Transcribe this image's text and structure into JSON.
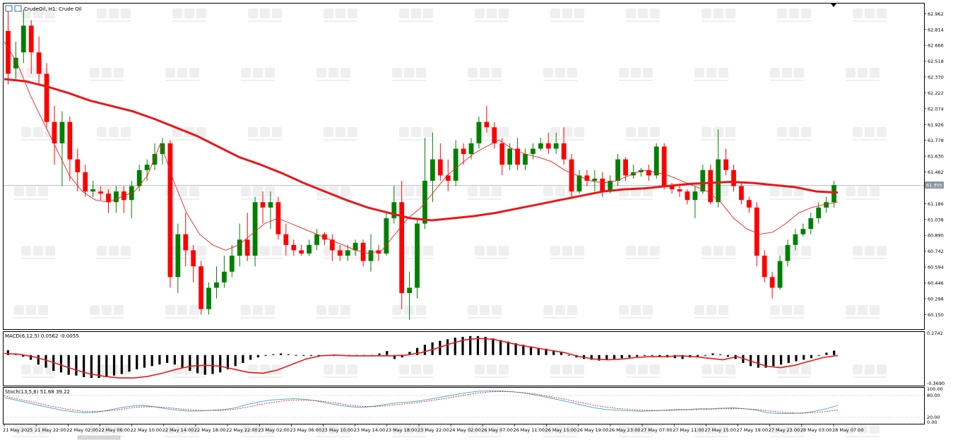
{
  "window": {
    "title": "CrudeOil, H1:  Crude Oil"
  },
  "price_panel": {
    "current_price": "61.355"
  },
  "macd_panel": {
    "label": "MACD(6,12,5) 0.0562 -0.0055",
    "scale_top": "0.2742",
    "scale_bottom": "-0.3690"
  },
  "stoch_panel": {
    "label": "Stoch(13,5,6) 51.68 39.22",
    "scale": [
      "100.00",
      "80.00",
      "20.00",
      "0.00"
    ]
  },
  "colors": {
    "bull": "#008000",
    "bear": "#ff0000",
    "ma_slow": "#e81818",
    "ma_fast": "#ee2020",
    "stoch_main": "#33aacc",
    "stoch_signal": "#dd2222"
  },
  "chart_data": {
    "type": "candlestick",
    "symbol": "CrudeOil",
    "timeframe": "H1",
    "y_ticks": [
      "62.962",
      "62.814",
      "62.666",
      "62.518",
      "62.370",
      "62.222",
      "62.074",
      "61.926",
      "61.778",
      "61.630",
      "61.482",
      "61.186",
      "61.038",
      "60.890",
      "60.742",
      "60.594",
      "60.446",
      "60.298",
      "60.150"
    ],
    "ylim": [
      60.02,
      63.05
    ],
    "x_ticks": [
      "21 May 2025",
      "21 May 22:00",
      "22 May 02:00",
      "22 May 06:00",
      "22 May 10:00",
      "22 May 14:00",
      "22 May 18:00",
      "22 May 22:00",
      "23 May 02:00",
      "23 May 06:00",
      "23 May 10:00",
      "23 May 14:00",
      "23 May 18:00",
      "23 May 22:00",
      "24 May 02:00",
      "26 May 07:00",
      "26 May 11:00",
      "26 May 15:00",
      "26 May 19:00",
      "26 May 23:00",
      "27 May 07:00",
      "27 May 11:00",
      "27 May 15:00",
      "27 May 19:00",
      "27 May 23:00",
      "28 May 03:00",
      "28 May 07:00"
    ],
    "candles": [
      [
        62.8,
        62.4,
        63.0,
        62.3
      ],
      [
        62.45,
        62.55,
        62.7,
        62.35
      ],
      [
        62.6,
        62.85,
        63.0,
        62.5
      ],
      [
        62.85,
        62.6,
        62.9,
        62.4
      ],
      [
        62.6,
        62.4,
        62.75,
        62.3
      ],
      [
        62.4,
        61.95,
        62.5,
        61.9
      ],
      [
        61.95,
        61.75,
        62.1,
        61.55
      ],
      [
        61.75,
        61.95,
        62.05,
        61.35
      ],
      [
        61.95,
        61.6,
        62.0,
        61.4
      ],
      [
        61.6,
        61.48,
        61.7,
        61.3
      ],
      [
        61.48,
        61.3,
        61.55,
        61.25
      ],
      [
        61.3,
        61.32,
        61.4,
        61.25
      ],
      [
        61.3,
        61.28,
        61.35,
        61.22
      ],
      [
        61.28,
        61.2,
        61.32,
        61.1
      ],
      [
        61.2,
        61.3,
        61.35,
        61.1
      ],
      [
        61.3,
        61.22,
        61.35,
        61.1
      ],
      [
        61.22,
        61.35,
        61.4,
        61.05
      ],
      [
        61.35,
        61.5,
        61.55,
        61.3
      ],
      [
        61.5,
        61.55,
        61.6,
        61.4
      ],
      [
        61.55,
        61.65,
        61.75,
        61.5
      ],
      [
        61.65,
        61.75,
        61.8,
        61.55
      ],
      [
        61.75,
        60.5,
        61.78,
        60.4
      ],
      [
        60.5,
        60.9,
        61.0,
        60.35
      ],
      [
        60.9,
        60.75,
        61.1,
        60.6
      ],
      [
        60.75,
        60.6,
        60.8,
        60.45
      ],
      [
        60.6,
        60.2,
        60.65,
        60.15
      ],
      [
        60.2,
        60.4,
        60.45,
        60.15
      ],
      [
        60.4,
        60.45,
        60.6,
        60.3
      ],
      [
        60.45,
        60.55,
        60.7,
        60.4
      ],
      [
        60.55,
        60.7,
        60.8,
        60.5
      ],
      [
        60.7,
        60.85,
        61.0,
        60.6
      ],
      [
        60.85,
        60.7,
        61.1,
        60.65
      ],
      [
        60.7,
        61.2,
        61.25,
        60.6
      ],
      [
        61.2,
        61.15,
        61.3,
        61.0
      ],
      [
        61.15,
        61.2,
        61.3,
        60.95
      ],
      [
        61.2,
        60.9,
        61.25,
        60.85
      ],
      [
        60.9,
        60.8,
        61.0,
        60.7
      ],
      [
        60.8,
        60.75,
        60.85,
        60.7
      ],
      [
        60.75,
        60.72,
        60.8,
        60.7
      ],
      [
        60.72,
        60.8,
        60.85,
        60.7
      ],
      [
        60.8,
        60.9,
        60.95,
        60.75
      ],
      [
        60.9,
        60.85,
        60.92,
        60.8
      ],
      [
        60.85,
        60.75,
        60.9,
        60.65
      ],
      [
        60.75,
        60.7,
        60.8,
        60.65
      ],
      [
        60.7,
        60.75,
        60.8,
        60.65
      ],
      [
        60.75,
        60.82,
        60.85,
        60.7
      ],
      [
        60.82,
        60.65,
        60.85,
        60.6
      ],
      [
        60.65,
        60.75,
        60.9,
        60.55
      ],
      [
        60.75,
        60.72,
        60.8,
        60.65
      ],
      [
        60.72,
        61.05,
        61.1,
        60.7
      ],
      [
        61.05,
        61.2,
        61.35,
        61.0
      ],
      [
        61.2,
        60.35,
        61.4,
        60.2
      ],
      [
        60.35,
        60.4,
        60.55,
        60.1
      ],
      [
        60.4,
        61.0,
        61.05,
        60.3
      ],
      [
        61.0,
        61.4,
        61.8,
        60.95
      ],
      [
        61.4,
        61.6,
        61.85,
        61.2
      ],
      [
        61.6,
        61.45,
        61.75,
        61.4
      ],
      [
        61.45,
        61.4,
        61.6,
        61.3
      ],
      [
        61.4,
        61.7,
        61.78,
        61.35
      ],
      [
        61.7,
        61.65,
        61.75,
        61.55
      ],
      [
        61.65,
        61.75,
        61.8,
        61.6
      ],
      [
        61.75,
        61.95,
        62.0,
        61.7
      ],
      [
        61.95,
        61.9,
        62.1,
        61.85
      ],
      [
        61.9,
        61.75,
        61.95,
        61.7
      ],
      [
        61.75,
        61.55,
        61.8,
        61.45
      ],
      [
        61.55,
        61.7,
        61.75,
        61.5
      ],
      [
        61.7,
        61.55,
        61.8,
        61.5
      ],
      [
        61.55,
        61.65,
        61.7,
        61.5
      ],
      [
        61.65,
        61.7,
        61.75,
        61.6
      ],
      [
        61.7,
        61.75,
        61.8,
        61.68
      ],
      [
        61.75,
        61.7,
        61.85,
        61.65
      ],
      [
        61.7,
        61.75,
        61.85,
        61.65
      ],
      [
        61.75,
        61.6,
        61.9,
        61.55
      ],
      [
        61.6,
        61.3,
        61.65,
        61.25
      ],
      [
        61.3,
        61.45,
        61.5,
        61.28
      ],
      [
        61.45,
        61.4,
        61.5,
        61.35
      ],
      [
        61.4,
        61.42,
        61.5,
        61.3
      ],
      [
        61.42,
        61.3,
        61.48,
        61.25
      ],
      [
        61.3,
        61.4,
        61.45,
        61.28
      ],
      [
        61.4,
        61.6,
        61.65,
        61.35
      ],
      [
        61.6,
        61.45,
        61.62,
        61.4
      ],
      [
        61.45,
        61.48,
        61.55,
        61.42
      ],
      [
        61.48,
        61.5,
        61.52,
        61.44
      ],
      [
        61.5,
        61.45,
        61.55,
        61.4
      ],
      [
        61.45,
        61.72,
        61.75,
        61.42
      ],
      [
        61.72,
        61.35,
        61.75,
        61.32
      ],
      [
        61.35,
        61.32,
        61.38,
        61.28
      ],
      [
        61.32,
        61.3,
        61.36,
        61.25
      ],
      [
        61.3,
        61.22,
        61.32,
        61.18
      ],
      [
        61.22,
        61.3,
        61.35,
        61.05
      ],
      [
        61.3,
        61.5,
        61.55,
        61.28
      ],
      [
        61.5,
        61.2,
        61.55,
        61.18
      ],
      [
        61.2,
        61.6,
        61.88,
        61.15
      ],
      [
        61.6,
        61.5,
        61.7,
        61.45
      ],
      [
        61.5,
        61.35,
        61.55,
        61.3
      ],
      [
        61.35,
        61.22,
        61.38,
        61.18
      ],
      [
        61.22,
        61.15,
        61.25,
        61.1
      ],
      [
        61.15,
        60.7,
        61.2,
        60.6
      ],
      [
        60.7,
        60.5,
        60.75,
        60.45
      ],
      [
        60.5,
        60.4,
        60.55,
        60.3
      ],
      [
        60.4,
        60.65,
        60.7,
        60.38
      ],
      [
        60.65,
        60.8,
        60.85,
        60.6
      ],
      [
        60.8,
        60.9,
        60.95,
        60.75
      ],
      [
        60.9,
        60.95,
        61.0,
        60.88
      ],
      [
        60.95,
        61.05,
        61.1,
        60.9
      ],
      [
        61.05,
        61.15,
        61.2,
        61.0
      ],
      [
        61.15,
        61.2,
        61.25,
        61.1
      ],
      [
        61.2,
        61.36,
        61.4,
        61.15
      ]
    ],
    "ma_slow": [
      62.35,
      62.33,
      62.28,
      62.22,
      62.15,
      62.1,
      62.05,
      61.98,
      61.9,
      61.82,
      61.72,
      61.62,
      61.55,
      61.47,
      61.38,
      61.3,
      61.22,
      61.15,
      61.1,
      61.05,
      61.03,
      61.05,
      61.07,
      61.1,
      61.14,
      61.18,
      61.22,
      61.26,
      61.3,
      61.32,
      61.33,
      61.35,
      61.37,
      61.38,
      61.39,
      61.38,
      61.36,
      61.34,
      61.3,
      61.29
    ],
    "ma_fast": [
      62.7,
      62.5,
      62.2,
      61.95,
      61.7,
      61.45,
      61.3,
      61.22,
      61.2,
      61.25,
      61.3,
      61.45,
      61.75,
      61.4,
      61.1,
      60.9,
      60.8,
      60.75,
      60.8,
      60.9,
      61.0,
      61.05,
      61.0,
      60.95,
      60.9,
      60.85,
      60.8,
      60.75,
      60.72,
      60.75,
      60.9,
      61.05,
      61.15,
      61.3,
      61.45,
      61.55,
      61.65,
      61.72,
      61.78,
      61.7,
      61.65,
      61.62,
      61.58,
      61.5,
      61.45,
      61.4,
      61.38,
      61.4,
      61.45,
      61.5,
      61.48,
      61.45,
      61.4,
      61.35,
      61.3,
      61.2,
      61.05,
      60.95,
      60.9,
      60.92,
      61.0,
      61.1,
      61.15,
      61.18,
      61.2
    ],
    "macd_hist": [
      0.06,
      0.02,
      -0.02,
      -0.06,
      -0.12,
      -0.16,
      -0.2,
      -0.22,
      -0.25,
      -0.26,
      -0.28,
      -0.29,
      -0.29,
      -0.28,
      -0.26,
      -0.24,
      -0.21,
      -0.18,
      -0.16,
      -0.14,
      -0.12,
      -0.1,
      -0.12,
      -0.16,
      -0.2,
      -0.23,
      -0.25,
      -0.24,
      -0.22,
      -0.18,
      -0.14,
      -0.1,
      -0.06,
      -0.03,
      -0.01,
      0.01,
      0.02,
      0.01,
      0.0,
      -0.01,
      -0.01,
      -0.01,
      -0.01,
      -0.01,
      -0.01,
      -0.01,
      -0.01,
      -0.01,
      -0.01,
      0.02,
      0.05,
      -0.05,
      -0.03,
      0.04,
      0.09,
      0.13,
      0.16,
      0.18,
      0.2,
      0.22,
      0.23,
      0.24,
      0.24,
      0.23,
      0.21,
      0.19,
      0.17,
      0.15,
      0.13,
      0.11,
      0.09,
      0.08,
      0.06,
      0.04,
      0.0,
      -0.03,
      -0.05,
      -0.06,
      -0.07,
      -0.06,
      -0.05,
      -0.04,
      -0.03,
      -0.02,
      -0.01,
      0.0,
      -0.02,
      -0.03,
      -0.04,
      -0.05,
      -0.03,
      -0.02,
      0.0,
      0.02,
      0.01,
      -0.02,
      -0.05,
      -0.1,
      -0.14,
      -0.16,
      -0.16,
      -0.14,
      -0.12,
      -0.1,
      -0.08,
      -0.06,
      -0.04,
      0.0,
      0.03,
      0.056
    ],
    "macd_signal": [
      0.02,
      0.01,
      -0.02,
      -0.07,
      -0.13,
      -0.19,
      -0.24,
      -0.27,
      -0.29,
      -0.29,
      -0.27,
      -0.23,
      -0.18,
      -0.14,
      -0.13,
      -0.14,
      -0.18,
      -0.22,
      -0.23,
      -0.19,
      -0.12,
      -0.05,
      -0.01,
      0.0,
      -0.01,
      -0.01,
      -0.01,
      -0.01,
      0.0,
      0.03,
      0.08,
      0.14,
      0.19,
      0.21,
      0.2,
      0.16,
      0.12,
      0.09,
      0.06,
      0.03,
      -0.02,
      -0.05,
      -0.06,
      -0.05,
      -0.03,
      -0.02,
      -0.02,
      -0.01,
      -0.02,
      -0.04,
      -0.06,
      -0.02,
      -0.08,
      -0.14,
      -0.16,
      -0.13,
      -0.08,
      -0.03,
      -0.005
    ],
    "stoch_main": [
      75,
      68,
      60,
      52,
      45,
      38,
      33,
      30,
      32,
      38,
      45,
      50,
      52,
      48,
      42,
      38,
      35,
      36,
      38,
      40,
      45,
      55,
      62,
      68,
      70,
      72,
      70,
      65,
      58,
      52,
      48,
      46,
      50,
      55,
      60,
      62,
      66,
      72,
      78,
      84,
      90,
      94,
      95,
      95,
      92,
      88,
      82,
      75,
      68,
      60,
      52,
      45,
      40,
      38,
      36,
      35,
      36,
      38,
      40,
      40,
      42,
      42,
      44,
      45,
      42,
      38,
      30,
      28,
      28,
      30,
      35,
      42,
      52
    ],
    "stoch_signal": [
      80,
      72,
      65,
      58,
      50,
      44,
      38,
      34,
      34,
      36,
      40,
      45,
      48,
      48,
      46,
      42,
      39,
      37,
      37,
      38,
      41,
      47,
      54,
      60,
      65,
      68,
      68,
      66,
      62,
      57,
      52,
      49,
      49,
      51,
      55,
      58,
      62,
      67,
      72,
      78,
      84,
      89,
      92,
      93,
      92,
      89,
      85,
      79,
      73,
      66,
      59,
      52,
      47,
      43,
      40,
      38,
      37,
      37,
      38,
      39,
      40,
      41,
      42,
      43,
      42,
      40,
      36,
      32,
      30,
      29,
      31,
      34,
      39
    ]
  }
}
